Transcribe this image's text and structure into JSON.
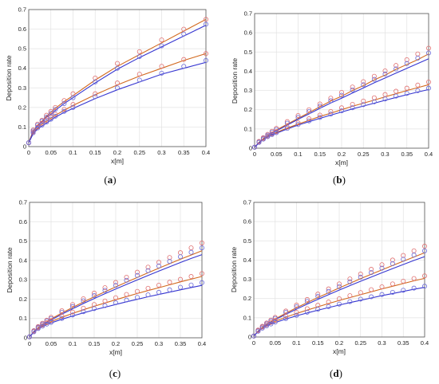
{
  "chart_data": [
    {
      "type": "line",
      "panel_label": "a",
      "xlabel": "x[m]",
      "ylabel": "Deposition rate",
      "xlim": [
        0,
        0.4
      ],
      "ylim": [
        0,
        0.7
      ],
      "xticks": [
        "0",
        "0.05",
        "0.1",
        "0.15",
        "0.2",
        "0.25",
        "0.3",
        "0.35",
        "0.4"
      ],
      "yticks": [
        "0",
        "0.1",
        "0.2",
        "0.3",
        "0.4",
        "0.5",
        "0.6",
        "0.7"
      ],
      "grid": true,
      "x": [
        0,
        0.01,
        0.02,
        0.03,
        0.04,
        0.05,
        0.06,
        0.08,
        0.1,
        0.15,
        0.2,
        0.25,
        0.3,
        0.35,
        0.4
      ],
      "series": [
        {
          "style": "line",
          "color": "#d2691e",
          "values": [
            0.02,
            0.08,
            0.11,
            0.13,
            0.155,
            0.175,
            0.195,
            0.23,
            0.26,
            0.34,
            0.41,
            0.47,
            0.53,
            0.59,
            0.65
          ]
        },
        {
          "style": "line",
          "color": "#3535d0",
          "values": [
            0.02,
            0.075,
            0.105,
            0.125,
            0.15,
            0.165,
            0.185,
            0.22,
            0.25,
            0.325,
            0.395,
            0.455,
            0.51,
            0.565,
            0.62
          ]
        },
        {
          "style": "line",
          "color": "#d2691e",
          "values": [
            0.02,
            0.07,
            0.095,
            0.115,
            0.13,
            0.145,
            0.16,
            0.185,
            0.21,
            0.265,
            0.315,
            0.36,
            0.4,
            0.44,
            0.475
          ]
        },
        {
          "style": "line",
          "color": "#3535d0",
          "values": [
            0.02,
            0.065,
            0.09,
            0.105,
            0.12,
            0.135,
            0.15,
            0.175,
            0.195,
            0.245,
            0.29,
            0.33,
            0.37,
            0.4,
            0.43
          ]
        },
        {
          "style": "markers",
          "color": "#e07070",
          "values": [
            0.02,
            0.085,
            0.115,
            0.135,
            0.16,
            0.18,
            0.2,
            0.235,
            0.27,
            0.35,
            0.425,
            0.485,
            0.545,
            0.6,
            0.65
          ]
        },
        {
          "style": "markers",
          "color": "#6a6ad8",
          "values": [
            0.02,
            0.08,
            0.11,
            0.13,
            0.15,
            0.17,
            0.19,
            0.22,
            0.25,
            0.33,
            0.4,
            0.46,
            0.515,
            0.575,
            0.625
          ]
        },
        {
          "style": "markers",
          "color": "#e07070",
          "values": [
            0.02,
            0.075,
            0.1,
            0.12,
            0.135,
            0.15,
            0.165,
            0.19,
            0.215,
            0.27,
            0.325,
            0.37,
            0.41,
            0.445,
            0.475
          ]
        },
        {
          "style": "markers",
          "color": "#6a6ad8",
          "values": [
            0.02,
            0.07,
            0.095,
            0.11,
            0.125,
            0.14,
            0.155,
            0.18,
            0.2,
            0.255,
            0.3,
            0.34,
            0.375,
            0.41,
            0.44
          ]
        }
      ]
    },
    {
      "type": "line",
      "panel_label": "b",
      "xlabel": "x[m]",
      "ylabel": "Deposition rate",
      "xlim": [
        0,
        0.4
      ],
      "ylim": [
        0,
        0.7
      ],
      "xticks": [
        "0",
        "0.05",
        "0.1",
        "0.15",
        "0.2",
        "0.25",
        "0.3",
        "0.35",
        "0.4"
      ],
      "yticks": [
        "0",
        "0.1",
        "0.2",
        "0.3",
        "0.4",
        "0.5",
        "0.6",
        "0.7"
      ],
      "grid": true,
      "x": [
        0,
        0.01,
        0.02,
        0.03,
        0.04,
        0.05,
        0.075,
        0.1,
        0.125,
        0.15,
        0.175,
        0.2,
        0.225,
        0.25,
        0.275,
        0.3,
        0.325,
        0.35,
        0.375,
        0.4
      ],
      "series": [
        {
          "style": "line",
          "color": "#d2691e",
          "values": [
            0.005,
            0.03,
            0.05,
            0.065,
            0.08,
            0.095,
            0.125,
            0.155,
            0.185,
            0.215,
            0.245,
            0.27,
            0.3,
            0.325,
            0.355,
            0.38,
            0.41,
            0.435,
            0.46,
            0.49
          ]
        },
        {
          "style": "line",
          "color": "#3535d0",
          "values": [
            0.005,
            0.028,
            0.047,
            0.062,
            0.077,
            0.09,
            0.12,
            0.15,
            0.178,
            0.207,
            0.235,
            0.26,
            0.287,
            0.313,
            0.34,
            0.365,
            0.39,
            0.415,
            0.44,
            0.465
          ]
        },
        {
          "style": "line",
          "color": "#d2691e",
          "values": [
            0.005,
            0.03,
            0.048,
            0.06,
            0.072,
            0.082,
            0.105,
            0.125,
            0.145,
            0.165,
            0.182,
            0.2,
            0.218,
            0.234,
            0.25,
            0.267,
            0.283,
            0.3,
            0.315,
            0.33
          ]
        },
        {
          "style": "line",
          "color": "#3535d0",
          "values": [
            0.005,
            0.028,
            0.045,
            0.057,
            0.068,
            0.078,
            0.1,
            0.12,
            0.138,
            0.155,
            0.172,
            0.188,
            0.204,
            0.219,
            0.234,
            0.249,
            0.264,
            0.278,
            0.292,
            0.305
          ]
        },
        {
          "style": "markers",
          "color": "#e07070",
          "values": [
            0.005,
            0.035,
            0.055,
            0.072,
            0.088,
            0.103,
            0.138,
            0.17,
            0.2,
            0.23,
            0.26,
            0.29,
            0.318,
            0.346,
            0.374,
            0.402,
            0.43,
            0.46,
            0.49,
            0.52
          ]
        },
        {
          "style": "markers",
          "color": "#6a6ad8",
          "values": [
            0.005,
            0.033,
            0.052,
            0.068,
            0.083,
            0.097,
            0.13,
            0.16,
            0.19,
            0.218,
            0.247,
            0.275,
            0.303,
            0.33,
            0.358,
            0.385,
            0.412,
            0.44,
            0.468,
            0.495
          ]
        },
        {
          "style": "markers",
          "color": "#e07070",
          "values": [
            0.005,
            0.032,
            0.05,
            0.063,
            0.075,
            0.086,
            0.11,
            0.132,
            0.153,
            0.172,
            0.191,
            0.21,
            0.228,
            0.245,
            0.262,
            0.279,
            0.296,
            0.312,
            0.328,
            0.344
          ]
        },
        {
          "style": "markers",
          "color": "#6a6ad8",
          "values": [
            0.005,
            0.03,
            0.047,
            0.06,
            0.071,
            0.081,
            0.103,
            0.123,
            0.142,
            0.16,
            0.177,
            0.194,
            0.21,
            0.226,
            0.241,
            0.256,
            0.271,
            0.285,
            0.299,
            0.312
          ]
        }
      ]
    },
    {
      "type": "line",
      "panel_label": "c",
      "xlabel": "x[m]",
      "ylabel": "Deposition rate",
      "xlim": [
        0,
        0.4
      ],
      "ylim": [
        0,
        0.7
      ],
      "xticks": [
        "0",
        "0.05",
        "0.1",
        "0.15",
        "0.2",
        "0.25",
        "0.3",
        "0.35",
        "0.4"
      ],
      "yticks": [
        "0",
        "0.1",
        "0.2",
        "0.3",
        "0.4",
        "0.5",
        "0.6",
        "0.7"
      ],
      "grid": true,
      "x": [
        0,
        0.01,
        0.02,
        0.03,
        0.04,
        0.05,
        0.075,
        0.1,
        0.125,
        0.15,
        0.175,
        0.2,
        0.225,
        0.25,
        0.275,
        0.3,
        0.325,
        0.35,
        0.375,
        0.4
      ],
      "series": [
        {
          "style": "line",
          "color": "#d2691e",
          "values": [
            0.005,
            0.032,
            0.052,
            0.068,
            0.083,
            0.097,
            0.128,
            0.157,
            0.185,
            0.212,
            0.238,
            0.263,
            0.288,
            0.312,
            0.336,
            0.36,
            0.383,
            0.406,
            0.428,
            0.45
          ]
        },
        {
          "style": "line",
          "color": "#3535d0",
          "values": [
            0.005,
            0.03,
            0.05,
            0.065,
            0.079,
            0.092,
            0.122,
            0.15,
            0.177,
            0.203,
            0.228,
            0.252,
            0.276,
            0.299,
            0.322,
            0.345,
            0.367,
            0.389,
            0.41,
            0.43
          ]
        },
        {
          "style": "line",
          "color": "#d2691e",
          "values": [
            0.005,
            0.032,
            0.05,
            0.063,
            0.074,
            0.084,
            0.106,
            0.126,
            0.145,
            0.163,
            0.18,
            0.197,
            0.213,
            0.229,
            0.244,
            0.259,
            0.274,
            0.289,
            0.303,
            0.317
          ]
        },
        {
          "style": "line",
          "color": "#3535d0",
          "values": [
            0.005,
            0.03,
            0.046,
            0.058,
            0.068,
            0.077,
            0.096,
            0.113,
            0.129,
            0.144,
            0.158,
            0.172,
            0.186,
            0.199,
            0.212,
            0.224,
            0.236,
            0.248,
            0.26,
            0.271
          ]
        },
        {
          "style": "markers",
          "color": "#e07070",
          "values": [
            0.005,
            0.037,
            0.058,
            0.075,
            0.091,
            0.106,
            0.14,
            0.172,
            0.202,
            0.231,
            0.259,
            0.286,
            0.313,
            0.339,
            0.365,
            0.39,
            0.415,
            0.44,
            0.465,
            0.49
          ]
        },
        {
          "style": "markers",
          "color": "#6a6ad8",
          "values": [
            0.005,
            0.035,
            0.055,
            0.071,
            0.086,
            0.1,
            0.132,
            0.162,
            0.191,
            0.218,
            0.245,
            0.271,
            0.297,
            0.322,
            0.347,
            0.371,
            0.395,
            0.419,
            0.442,
            0.465
          ]
        },
        {
          "style": "markers",
          "color": "#e07070",
          "values": [
            0.005,
            0.034,
            0.052,
            0.066,
            0.078,
            0.089,
            0.112,
            0.133,
            0.153,
            0.172,
            0.19,
            0.207,
            0.224,
            0.24,
            0.256,
            0.272,
            0.287,
            0.302,
            0.317,
            0.332
          ]
        },
        {
          "style": "markers",
          "color": "#6a6ad8",
          "values": [
            0.005,
            0.031,
            0.048,
            0.06,
            0.071,
            0.08,
            0.1,
            0.118,
            0.135,
            0.151,
            0.166,
            0.181,
            0.195,
            0.209,
            0.222,
            0.235,
            0.248,
            0.261,
            0.273,
            0.285
          ]
        }
      ]
    },
    {
      "type": "line",
      "panel_label": "d",
      "xlabel": "x[m]",
      "ylabel": "Deposition rate",
      "xlim": [
        0,
        0.4
      ],
      "ylim": [
        0,
        0.7
      ],
      "xticks": [
        "0",
        "0.05",
        "0.1",
        "0.15",
        "0.2",
        "0.25",
        "0.3",
        "0.35",
        "0.4"
      ],
      "yticks": [
        "0",
        "0.1",
        "0.2",
        "0.3",
        "0.4",
        "0.5",
        "0.6",
        "0.7"
      ],
      "grid": true,
      "x": [
        0,
        0.01,
        0.02,
        0.03,
        0.04,
        0.05,
        0.075,
        0.1,
        0.125,
        0.15,
        0.175,
        0.2,
        0.225,
        0.25,
        0.275,
        0.3,
        0.325,
        0.35,
        0.375,
        0.4
      ],
      "series": [
        {
          "style": "line",
          "color": "#d2691e",
          "values": [
            0.005,
            0.031,
            0.05,
            0.066,
            0.08,
            0.094,
            0.124,
            0.152,
            0.179,
            0.205,
            0.23,
            0.255,
            0.279,
            0.303,
            0.326,
            0.349,
            0.372,
            0.394,
            0.416,
            0.438
          ]
        },
        {
          "style": "line",
          "color": "#3535d0",
          "values": [
            0.005,
            0.03,
            0.048,
            0.063,
            0.077,
            0.09,
            0.118,
            0.145,
            0.171,
            0.196,
            0.22,
            0.244,
            0.267,
            0.29,
            0.312,
            0.334,
            0.356,
            0.377,
            0.398,
            0.418
          ]
        },
        {
          "style": "line",
          "color": "#d2691e",
          "values": [
            0.005,
            0.031,
            0.048,
            0.061,
            0.072,
            0.082,
            0.103,
            0.122,
            0.14,
            0.157,
            0.174,
            0.19,
            0.205,
            0.22,
            0.235,
            0.25,
            0.264,
            0.278,
            0.292,
            0.305
          ]
        },
        {
          "style": "line",
          "color": "#3535d0",
          "values": [
            0.005,
            0.029,
            0.045,
            0.057,
            0.067,
            0.075,
            0.093,
            0.11,
            0.125,
            0.139,
            0.153,
            0.166,
            0.179,
            0.191,
            0.203,
            0.215,
            0.226,
            0.237,
            0.248,
            0.258
          ]
        },
        {
          "style": "markers",
          "color": "#e07070",
          "values": [
            0.005,
            0.036,
            0.056,
            0.073,
            0.088,
            0.102,
            0.135,
            0.166,
            0.195,
            0.223,
            0.25,
            0.276,
            0.302,
            0.327,
            0.352,
            0.376,
            0.4,
            0.424,
            0.448,
            0.472
          ]
        },
        {
          "style": "markers",
          "color": "#6a6ad8",
          "values": [
            0.005,
            0.034,
            0.053,
            0.069,
            0.083,
            0.097,
            0.128,
            0.157,
            0.185,
            0.211,
            0.237,
            0.262,
            0.287,
            0.311,
            0.335,
            0.358,
            0.381,
            0.404,
            0.426,
            0.448
          ]
        },
        {
          "style": "markers",
          "color": "#e07070",
          "values": [
            0.005,
            0.033,
            0.051,
            0.064,
            0.076,
            0.086,
            0.108,
            0.128,
            0.147,
            0.165,
            0.182,
            0.199,
            0.215,
            0.231,
            0.246,
            0.261,
            0.276,
            0.29,
            0.304,
            0.318
          ]
        },
        {
          "style": "markers",
          "color": "#6a6ad8",
          "values": [
            0.005,
            0.03,
            0.046,
            0.058,
            0.068,
            0.077,
            0.096,
            0.113,
            0.129,
            0.144,
            0.158,
            0.171,
            0.184,
            0.197,
            0.209,
            0.221,
            0.232,
            0.243,
            0.254,
            0.264
          ]
        }
      ]
    }
  ]
}
